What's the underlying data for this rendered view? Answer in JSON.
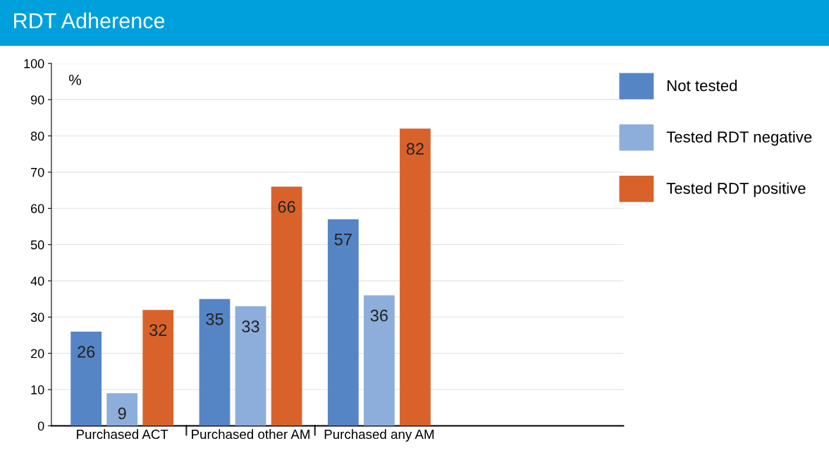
{
  "chart_data": {
    "type": "bar",
    "title": "RDT Adherence",
    "ylabel": "%",
    "categories": [
      "Purchased ACT",
      "Purchased other AM",
      "Purchased any AM"
    ],
    "series": [
      {
        "name": "Not tested",
        "color": "#5585c5",
        "values": [
          26,
          35,
          57
        ]
      },
      {
        "name": "Tested RDT negative",
        "color": "#8daedb",
        "values": [
          9,
          33,
          36
        ]
      },
      {
        "name": "Tested RDT positive",
        "color": "#d9622b",
        "values": [
          32,
          66,
          82
        ]
      }
    ],
    "ylim": [
      0,
      100
    ],
    "yticks": [
      0,
      10,
      20,
      30,
      40,
      50,
      60,
      70,
      80,
      90,
      100
    ],
    "grid": "y",
    "legend": "right",
    "data_labels": true
  }
}
